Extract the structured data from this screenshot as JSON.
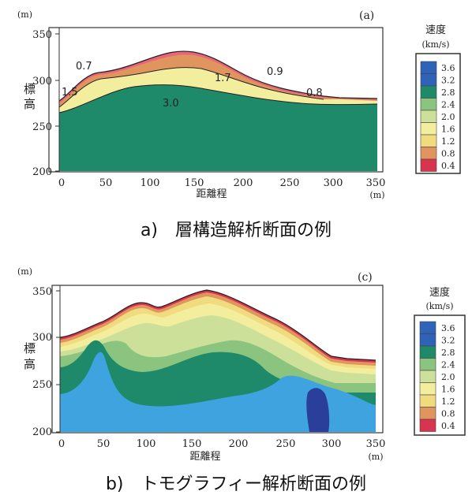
{
  "colors": {
    "c04": "#d8344f",
    "c08": "#e8667a",
    "c12": "#e0955e",
    "c16": "#f0dc7e",
    "c20": "#f2ee9e",
    "c24": "#cde09a",
    "c28": "#8ac47e",
    "c32": "#1f8a6a",
    "c36": "#2f63b8",
    "blue_light": "#3fa3e0",
    "blue_dark": "#2a3f9a",
    "green": "#1f8a6a",
    "frame": "#333333"
  },
  "panel_a": {
    "y_unit": "(m)",
    "panel_label": "(a)",
    "y_axis_label": "標\n高",
    "x_axis_label": "距離程",
    "x_unit": "(m)",
    "x_ticks": [
      "0",
      "50",
      "100",
      "150",
      "200",
      "250",
      "300",
      "350"
    ],
    "y_ticks": [
      "350",
      "300",
      "250",
      "200"
    ],
    "layer_labels": {
      "v07": "0.7",
      "v15": "1.5",
      "v17": "1.7",
      "v09": "0.9",
      "v08": "0.8",
      "v30": "3.0"
    },
    "caption": "a)　層構造解析断面の例"
  },
  "panel_b": {
    "y_unit": "(m)",
    "panel_label": "(c)",
    "y_axis_label": "標\n高",
    "x_axis_label": "距離程",
    "x_unit": "(m)",
    "x_ticks": [
      "0",
      "50",
      "100",
      "150",
      "200",
      "250",
      "300",
      "350"
    ],
    "y_ticks": [
      "350",
      "300",
      "250",
      "200"
    ],
    "caption": "b)　トモグラフィー解析断面の例"
  },
  "legend": {
    "title": "速度",
    "unit": "(km/s)",
    "values": [
      "3.6",
      "3.2",
      "2.8",
      "2.4",
      "2.0",
      "1.6",
      "1.2",
      "0.8",
      "0.4"
    ],
    "fill_colors": [
      "#2f63b8",
      "#2f63b8",
      "#1f8a6a",
      "#8ac47e",
      "#cde09a",
      "#f2ee9e",
      "#f0dc7e",
      "#e0955e",
      "#d8344f"
    ]
  }
}
